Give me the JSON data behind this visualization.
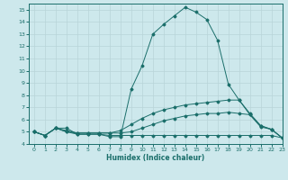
{
  "xlabel": "Humidex (Indice chaleur)",
  "xlim": [
    -0.5,
    23
  ],
  "ylim": [
    4,
    15.5
  ],
  "yticks": [
    4,
    5,
    6,
    7,
    8,
    9,
    10,
    11,
    12,
    13,
    14,
    15
  ],
  "xticks": [
    0,
    1,
    2,
    3,
    4,
    5,
    6,
    7,
    8,
    9,
    10,
    11,
    12,
    13,
    14,
    15,
    16,
    17,
    18,
    19,
    20,
    21,
    22,
    23
  ],
  "background_color": "#cde8ec",
  "grid_color": "#b8d4d8",
  "line_color": "#1a6e6a",
  "lines": [
    {
      "x": [
        0,
        1,
        2,
        3,
        4,
        5,
        6,
        7,
        8,
        9,
        10,
        11,
        12,
        13,
        14,
        15,
        16,
        17,
        18,
        19,
        20,
        21,
        22,
        23
      ],
      "y": [
        5.0,
        4.7,
        5.3,
        5.3,
        4.8,
        4.8,
        4.8,
        4.6,
        4.6,
        8.5,
        10.4,
        13.0,
        13.8,
        14.5,
        15.2,
        14.8,
        14.2,
        12.5,
        8.9,
        7.6,
        6.4,
        5.4,
        5.2,
        4.5
      ]
    },
    {
      "x": [
        0,
        1,
        2,
        3,
        4,
        5,
        6,
        7,
        8,
        9,
        10,
        11,
        12,
        13,
        14,
        15,
        16,
        17,
        18,
        19,
        20,
        21,
        22,
        23
      ],
      "y": [
        5.0,
        4.7,
        5.3,
        5.1,
        4.9,
        4.9,
        4.9,
        4.9,
        5.1,
        5.6,
        6.1,
        6.5,
        6.8,
        7.0,
        7.2,
        7.3,
        7.4,
        7.5,
        7.6,
        7.6,
        6.5,
        5.5,
        5.2,
        4.5
      ]
    },
    {
      "x": [
        0,
        1,
        2,
        3,
        4,
        5,
        6,
        7,
        8,
        9,
        10,
        11,
        12,
        13,
        14,
        15,
        16,
        17,
        18,
        19,
        20,
        21,
        22,
        23
      ],
      "y": [
        5.0,
        4.7,
        5.3,
        5.0,
        4.9,
        4.9,
        4.9,
        4.9,
        4.9,
        5.0,
        5.3,
        5.6,
        5.9,
        6.1,
        6.3,
        6.4,
        6.5,
        6.5,
        6.6,
        6.5,
        6.4,
        5.5,
        5.2,
        4.5
      ]
    },
    {
      "x": [
        0,
        1,
        2,
        3,
        4,
        5,
        6,
        7,
        8,
        9,
        10,
        11,
        12,
        13,
        14,
        15,
        16,
        17,
        18,
        19,
        20,
        21,
        22,
        23
      ],
      "y": [
        5.0,
        4.7,
        5.3,
        5.0,
        4.8,
        4.8,
        4.8,
        4.7,
        4.7,
        4.7,
        4.7,
        4.7,
        4.7,
        4.7,
        4.7,
        4.7,
        4.7,
        4.7,
        4.7,
        4.7,
        4.7,
        4.7,
        4.7,
        4.5
      ]
    }
  ]
}
